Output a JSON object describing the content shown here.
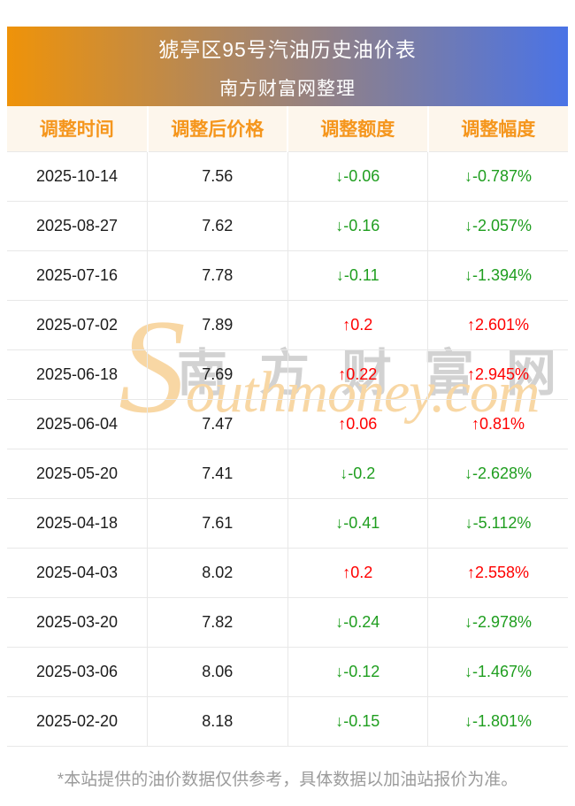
{
  "page": {
    "footer_note": "*本站提供的油价数据仅供参考，具体数据以加油站报价为准。"
  },
  "watermark": {
    "cn": "南方财富网",
    "en_first": "S",
    "en_rest": "outhmoney.com"
  },
  "chart_data": {
    "type": "table",
    "title": "猇亭区95号汽油历史油价表",
    "subtitle": "南方财富网整理",
    "columns": [
      "调整时间",
      "调整后价格",
      "调整额度",
      "调整幅度"
    ],
    "rows": [
      {
        "date": "2025-10-14",
        "price": "7.56",
        "change": "↓-0.06",
        "change_pct": "↓-0.787%",
        "trend": "down"
      },
      {
        "date": "2025-08-27",
        "price": "7.62",
        "change": "↓-0.16",
        "change_pct": "↓-2.057%",
        "trend": "down"
      },
      {
        "date": "2025-07-16",
        "price": "7.78",
        "change": "↓-0.11",
        "change_pct": "↓-1.394%",
        "trend": "down"
      },
      {
        "date": "2025-07-02",
        "price": "7.89",
        "change": "↑0.2",
        "change_pct": "↑2.601%",
        "trend": "up"
      },
      {
        "date": "2025-06-18",
        "price": "7.69",
        "change": "↑0.22",
        "change_pct": "↑2.945%",
        "trend": "up"
      },
      {
        "date": "2025-06-04",
        "price": "7.47",
        "change": "↑0.06",
        "change_pct": "↑0.81%",
        "trend": "up"
      },
      {
        "date": "2025-05-20",
        "price": "7.41",
        "change": "↓-0.2",
        "change_pct": "↓-2.628%",
        "trend": "down"
      },
      {
        "date": "2025-04-18",
        "price": "7.61",
        "change": "↓-0.41",
        "change_pct": "↓-5.112%",
        "trend": "down"
      },
      {
        "date": "2025-04-03",
        "price": "8.02",
        "change": "↑0.2",
        "change_pct": "↑2.558%",
        "trend": "up"
      },
      {
        "date": "2025-03-20",
        "price": "7.82",
        "change": "↓-0.24",
        "change_pct": "↓-2.978%",
        "trend": "down"
      },
      {
        "date": "2025-03-06",
        "price": "8.06",
        "change": "↓-0.12",
        "change_pct": "↓-1.467%",
        "trend": "down"
      },
      {
        "date": "2025-02-20",
        "price": "8.18",
        "change": "↓-0.15",
        "change_pct": "↓-1.801%",
        "trend": "down"
      }
    ]
  },
  "colors": {
    "banner_gradient_left": "#ef9309",
    "banner_gradient_right": "#4a73e6",
    "header_row_bg": "#fdf6ec",
    "header_row_text": "#f5961d",
    "up_red": "#ff0000",
    "down_green": "#1f9e1f",
    "row_border": "#e8e8e8",
    "footer_text": "#9b9b9b",
    "watermark_gray": "#d2d2d2",
    "watermark_orange": "#f8d7a4"
  }
}
